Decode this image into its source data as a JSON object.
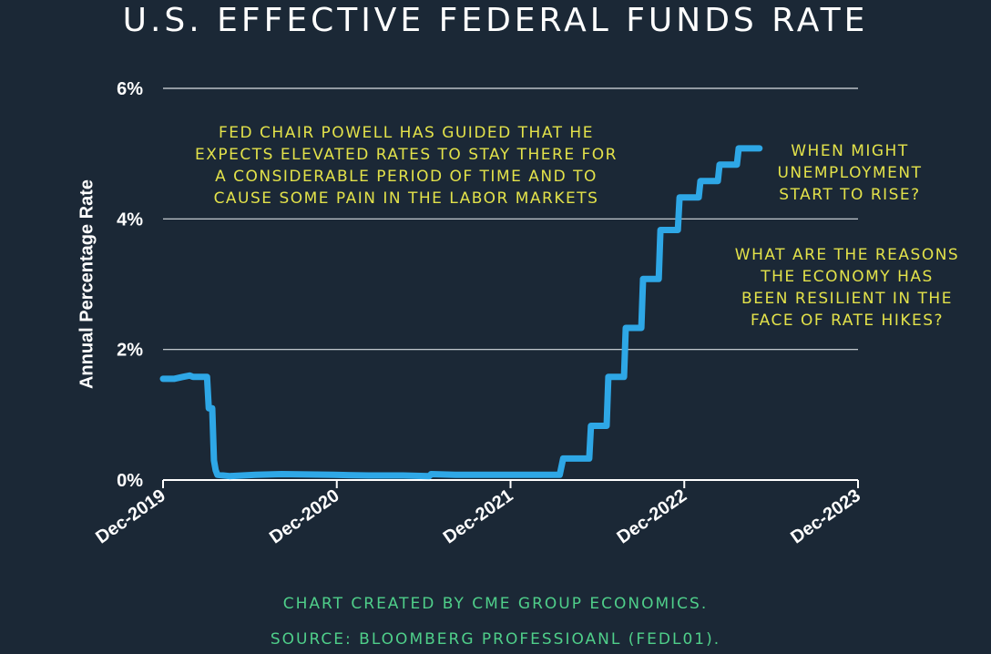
{
  "title": "U.S. EFFECTIVE FEDERAL FUNDS RATE",
  "annotations": {
    "powell_note": "FED CHAIR POWELL HAS GUIDED THAT HE\nEXPECTS ELEVATED RATES TO STAY THERE FOR\nA CONSIDERABLE PERIOD OF TIME AND TO\nCAUSE SOME PAIN IN THE LABOR MARKETS",
    "unemployment_question": "WHEN MIGHT\nUNEMPLOYMENT\nSTART TO RISE?",
    "resilience_question": "WHAT ARE THE REASONS\nTHE ECONOMY HAS\nBEEN RESILIENT IN THE\nFACE OF RATE HIKES?"
  },
  "footer": {
    "credit": "CHART CREATED BY CME GROUP ECONOMICS.",
    "source": "SOURCE:  BLOOMBERG PROFESSIOANL (FEDL01)."
  },
  "colors": {
    "background": "#1b2836",
    "line": "#2ea7e6",
    "annotation": "#e3e24a",
    "footer": "#4fcf8a",
    "grid": "#d9dde2"
  },
  "chart_data": {
    "type": "line",
    "title": "U.S. EFFECTIVE FEDERAL FUNDS RATE",
    "xlabel": "",
    "ylabel": "Annual Percentage Rate",
    "xlim": [
      2019.917,
      2023.917
    ],
    "ylim": [
      0,
      6
    ],
    "y_ticks": [
      {
        "value": 0,
        "label": "0%"
      },
      {
        "value": 2,
        "label": "2%"
      },
      {
        "value": 4,
        "label": "4%"
      },
      {
        "value": 6,
        "label": "6%"
      }
    ],
    "x_ticks": [
      {
        "value": 2019.917,
        "label": "Dec-2019"
      },
      {
        "value": 2020.917,
        "label": "Dec-2020"
      },
      {
        "value": 2021.917,
        "label": "Dec-2021"
      },
      {
        "value": 2022.917,
        "label": "Dec-2022"
      },
      {
        "value": 2023.917,
        "label": "Dec-2023"
      }
    ],
    "grid": true,
    "series": [
      {
        "name": "Effective Federal Funds Rate",
        "x": [
          2019.917,
          2019.98,
          2020.03,
          2020.07,
          2020.09,
          2020.17,
          2020.18,
          2020.2,
          2020.21,
          2020.22,
          2020.23,
          2020.3,
          2020.45,
          2020.6,
          2020.9,
          2021.1,
          2021.3,
          2021.45,
          2021.46,
          2021.6,
          2021.9,
          2022.2,
          2022.22,
          2022.37,
          2022.38,
          2022.47,
          2022.48,
          2022.57,
          2022.58,
          2022.67,
          2022.68,
          2022.77,
          2022.78,
          2022.88,
          2022.89,
          2023.0,
          2023.01,
          2023.11,
          2023.12,
          2023.22,
          2023.23,
          2023.35
        ],
        "values": [
          1.55,
          1.55,
          1.58,
          1.6,
          1.58,
          1.58,
          1.1,
          1.1,
          0.3,
          0.15,
          0.08,
          0.06,
          0.08,
          0.09,
          0.08,
          0.07,
          0.07,
          0.06,
          0.09,
          0.08,
          0.08,
          0.08,
          0.33,
          0.33,
          0.83,
          0.83,
          1.58,
          1.58,
          2.33,
          2.33,
          3.08,
          3.08,
          3.83,
          3.83,
          4.33,
          4.33,
          4.58,
          4.58,
          4.83,
          4.83,
          5.08,
          5.08
        ]
      }
    ]
  }
}
